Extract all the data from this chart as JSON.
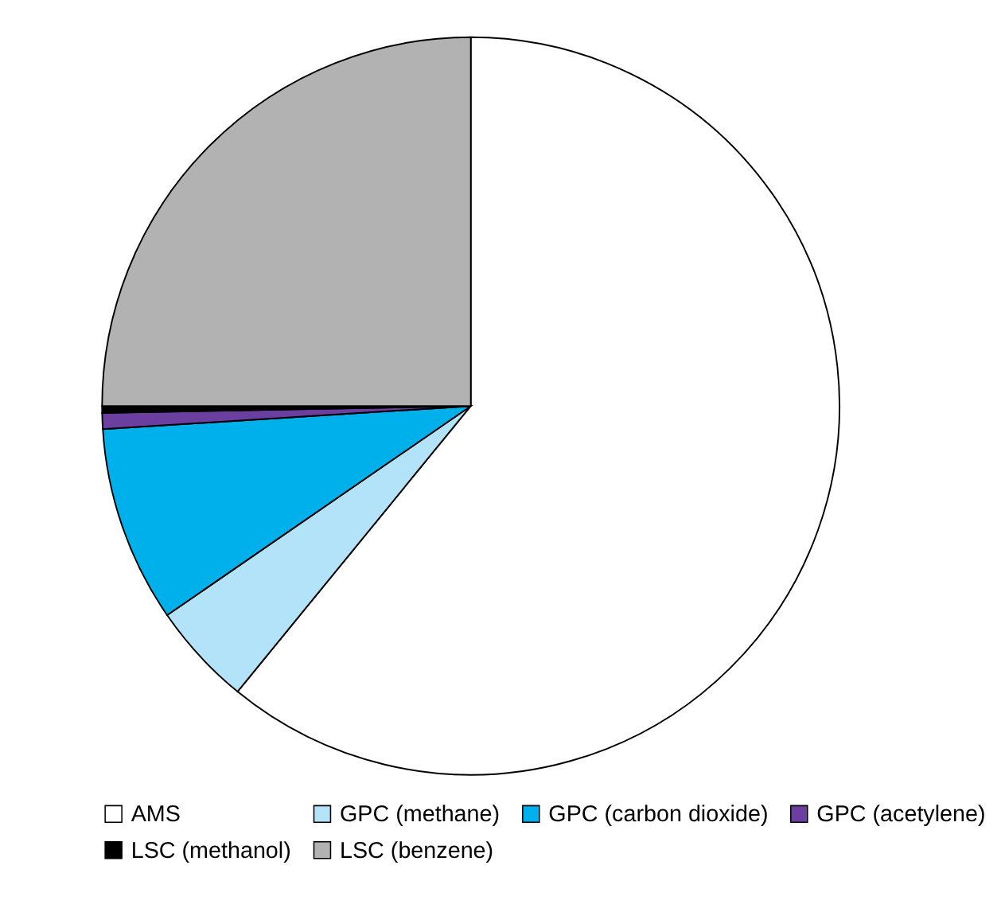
{
  "chart_data": {
    "type": "pie",
    "categories": [
      "AMS",
      "GPC (methane)",
      "GPC (carbon dioxide)",
      "GPC (acetylene)",
      "LSC (methanol)",
      "LSC (benzene)"
    ],
    "values": [
      60.9,
      4.5,
      8.6,
      0.7,
      0.3,
      25
    ],
    "colors": [
      "#ffffff",
      "#b3e3f9",
      "#00b0eb",
      "#6b3fa0",
      "#000000",
      "#b2b2b2"
    ],
    "legend": "bottom"
  }
}
